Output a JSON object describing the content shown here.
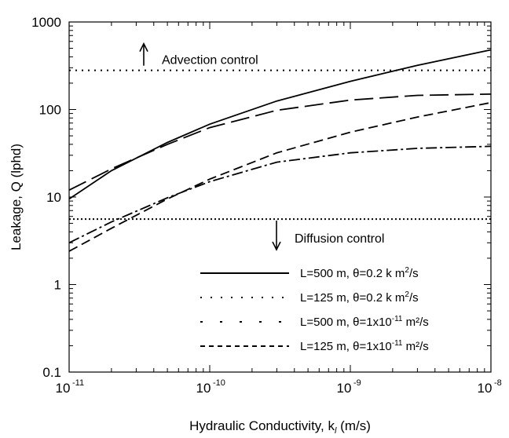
{
  "chart_data": {
    "type": "line",
    "xlabel": "Hydraulic Conductivity, k",
    "xlabel_sub": "l",
    "xlabel_unit": " (m/s)",
    "ylabel": "Leakage, Q (lphd)",
    "xscale": "log",
    "yscale": "log",
    "xlim": [
      1e-11,
      1e-08
    ],
    "ylim": [
      0.1,
      1000
    ],
    "grid": false,
    "legend_position": "bottom-right",
    "x_ticks": [
      {
        "base": "10",
        "exp": "-11",
        "value": 1e-11
      },
      {
        "base": "10",
        "exp": "-10",
        "value": 1e-10
      },
      {
        "base": "10",
        "exp": "-9",
        "value": 1e-09
      },
      {
        "base": "10",
        "exp": "-8",
        "value": 1e-08
      }
    ],
    "y_ticks": [
      {
        "label": "0.1",
        "value": 0.1
      },
      {
        "label": "1",
        "value": 1
      },
      {
        "label": "10",
        "value": 10
      },
      {
        "label": "100",
        "value": 100
      },
      {
        "label": "1000",
        "value": 1000
      }
    ],
    "series": [
      {
        "legend_label": "L=500 m, θ=0.2 k m",
        "legend_sup": "2",
        "legend_tail": "/s",
        "dash": "none",
        "x": [
          1e-11,
          2e-11,
          5e-11,
          1e-10,
          3e-10,
          1e-09,
          3e-09,
          1e-08
        ],
        "y": [
          9.5,
          20,
          42,
          68,
          125,
          210,
          320,
          480
        ]
      },
      {
        "legend_label": "L=125 m, θ=0.2 k m",
        "legend_sup": "2",
        "legend_tail": "/s",
        "dash": "24,8",
        "x": [
          1e-11,
          2e-11,
          5e-11,
          1e-10,
          3e-10,
          1e-09,
          3e-09,
          1e-08
        ],
        "y": [
          12,
          21,
          40,
          62,
          98,
          128,
          145,
          150
        ]
      },
      {
        "legend_label": "L=500 m, θ=1x10",
        "legend_sup": "-11",
        "legend_tail": " m²/s",
        "dash": "12,6",
        "x": [
          1e-11,
          2e-11,
          5e-11,
          1e-10,
          3e-10,
          1e-09,
          3e-09,
          1e-08
        ],
        "y": [
          2.4,
          4.4,
          9.5,
          16,
          32,
          55,
          82,
          120
        ]
      },
      {
        "legend_label": "L=125 m, θ=1x10",
        "legend_sup": "-11",
        "legend_tail": " m²/s",
        "dash": "14,4,3,4",
        "x": [
          1e-11,
          2e-11,
          5e-11,
          1e-10,
          3e-10,
          1e-09,
          3e-09,
          1e-08
        ],
        "y": [
          3.0,
          5.2,
          9.8,
          15,
          25,
          32,
          36,
          38
        ]
      }
    ],
    "reference_lines": [
      {
        "name": "advection-line",
        "y": 280,
        "dash": "2,6",
        "label": "Advection control",
        "arrow": "up"
      },
      {
        "name": "diffusion-line",
        "y": 5.6,
        "dash": "2,3",
        "label": "Diffusion control",
        "arrow": "down"
      }
    ]
  }
}
